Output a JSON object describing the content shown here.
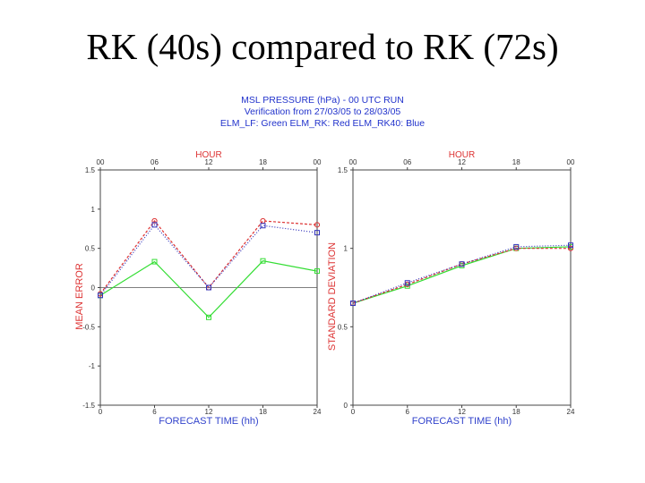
{
  "slide": {
    "title": "RK (40s) compared to RK (72s)"
  },
  "figure_header": {
    "line1": "MSL PRESSURE (hPa) - 00 UTC RUN",
    "line2": "Verification from 27/03/05 to 28/03/05",
    "line3": "ELM_LF: Green   ELM_RK: Red   ELM_RK40: Blue"
  },
  "colors": {
    "green": "#33dd33",
    "red": "#dd3333",
    "blue": "#3333bb",
    "axis_label": "#dd3333",
    "xlabel": "#3344cc"
  },
  "chart_data": [
    {
      "type": "line",
      "top_label": "HOUR",
      "top_ticks": [
        "00",
        "06",
        "12",
        "18",
        "00"
      ],
      "xlabel": "FORECAST TIME (hh)",
      "ylabel": "MEAN ERROR",
      "x": [
        0,
        6,
        12,
        18,
        24
      ],
      "xlim": [
        0,
        24
      ],
      "ylim": [
        -1.5,
        1.5
      ],
      "yticks": [
        "-1.5",
        "-1",
        "-0.5",
        "0",
        "0.5",
        "1",
        "1.5"
      ],
      "ytick_values": [
        -1.5,
        -1,
        -0.5,
        0,
        0.5,
        1,
        1.5
      ],
      "zero_line": true,
      "series": [
        {
          "name": "ELM_LF",
          "color": "#33dd33",
          "values": [
            -0.1,
            0.33,
            -0.38,
            0.34,
            0.21
          ]
        },
        {
          "name": "ELM_RK",
          "color": "#dd3333",
          "values": [
            -0.08,
            0.85,
            0.0,
            0.85,
            0.8
          ]
        },
        {
          "name": "ELM_RK40",
          "color": "#3333bb",
          "values": [
            -0.1,
            0.8,
            0.0,
            0.79,
            0.7
          ]
        }
      ]
    },
    {
      "type": "line",
      "top_label": "HOUR",
      "top_ticks": [
        "00",
        "06",
        "12",
        "18",
        "00"
      ],
      "xlabel": "FORECAST TIME (hh)",
      "ylabel": "STANDARD DEVIATION",
      "x": [
        0,
        6,
        12,
        18,
        24
      ],
      "xlim": [
        0,
        24
      ],
      "ylim": [
        0,
        1.5
      ],
      "yticks": [
        "0",
        "0.5",
        "1",
        "1.5"
      ],
      "ytick_values": [
        0,
        0.5,
        1,
        1.5
      ],
      "zero_line": false,
      "series": [
        {
          "name": "ELM_LF",
          "color": "#33dd33",
          "values": [
            0.65,
            0.76,
            0.89,
            1.0,
            1.01
          ]
        },
        {
          "name": "ELM_RK",
          "color": "#dd3333",
          "values": [
            0.65,
            0.77,
            0.9,
            1.0,
            1.0
          ]
        },
        {
          "name": "ELM_RK40",
          "color": "#3333bb",
          "values": [
            0.65,
            0.78,
            0.9,
            1.01,
            1.02
          ]
        }
      ]
    }
  ]
}
